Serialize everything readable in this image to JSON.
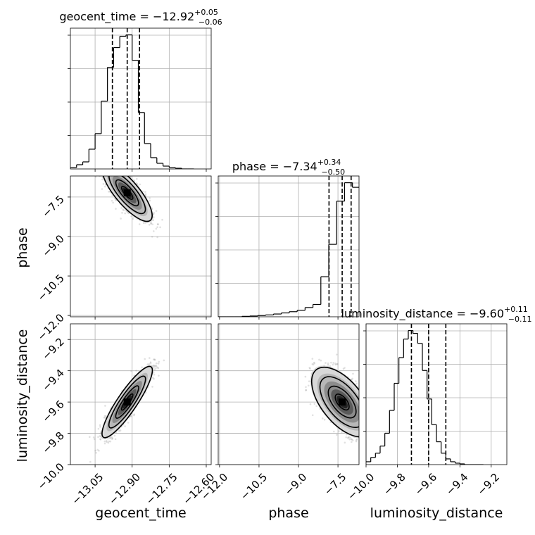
{
  "chart_data": {
    "type": "corner",
    "parameters": [
      "geocent_time",
      "phase",
      "luminosity_distance"
    ],
    "titles": [
      {
        "param": "geocent_time",
        "value": "−12.92",
        "upper": "+0.05",
        "lower": "−0.06"
      },
      {
        "param": "phase",
        "value": "−7.34",
        "upper": "+0.34",
        "lower": "−0.50"
      },
      {
        "param": "luminosity_distance",
        "value": "−9.60",
        "upper": "+0.11",
        "lower": "−0.11"
      }
    ],
    "axis_labels": [
      "geocent_time",
      "phase",
      "luminosity_distance"
    ],
    "ranges": {
      "geocent_time": [
        -13.15,
        -12.58
      ],
      "phase": [
        -12.05,
        -6.7
      ],
      "luminosity_distance": [
        -10.0,
        -9.1
      ]
    },
    "ticks": {
      "geocent_time": [
        -13.05,
        -12.9,
        -12.75,
        -12.6
      ],
      "phase": [
        -12.0,
        -10.5,
        -9.0,
        -7.5
      ],
      "luminosity_distance": [
        -10.0,
        -9.8,
        -9.6,
        -9.4,
        -9.2
      ]
    },
    "tick_labels": {
      "geocent_time": [
        "−13.05",
        "−12.90",
        "−12.75",
        "−12.60"
      ],
      "phase": [
        "−12.0",
        "−10.5",
        "−9.0",
        "−7.5"
      ],
      "luminosity_distance": [
        "−10.0",
        "−9.8",
        "−9.6",
        "−9.4",
        "−9.2"
      ]
    },
    "quantiles": {
      "geocent_time": [
        -12.98,
        -12.92,
        -12.87
      ],
      "phase": [
        -7.84,
        -7.34,
        -7.0
      ],
      "luminosity_distance": [
        -9.71,
        -9.6,
        -9.49
      ]
    },
    "medians": {
      "geocent_time": -12.92,
      "phase": -7.34,
      "luminosity_distance": -9.6
    },
    "histograms": {
      "geocent_time": {
        "edges": [
          -13.15,
          -13.125,
          -13.1,
          -13.075,
          -13.05,
          -13.025,
          -13.0,
          -12.975,
          -12.95,
          -12.925,
          -12.9,
          -12.875,
          -12.85,
          -12.825,
          -12.8,
          -12.775,
          -12.75,
          -12.725,
          -12.7,
          -12.675,
          -12.65
        ],
        "counts": [
          1,
          3,
          5,
          14,
          25,
          48,
          72,
          86,
          94,
          95,
          77,
          40,
          18,
          8,
          4,
          2,
          1,
          0.5,
          0,
          0
        ]
      },
      "phase": {
        "edges": [
          -12.05,
          -11.75,
          -11.45,
          -11.15,
          -10.85,
          -10.55,
          -10.25,
          -9.95,
          -9.65,
          -9.35,
          -9.05,
          -8.75,
          -8.45,
          -8.15,
          -7.85,
          -7.55,
          -7.25,
          -6.95,
          -6.7
        ],
        "counts": [
          0,
          0,
          0,
          0.3,
          0.5,
          0.8,
          1.2,
          1.8,
          2.5,
          3.3,
          4.2,
          6,
          8,
          26,
          47,
          75,
          87,
          84
        ]
      },
      "luminosity_distance": {
        "edges": [
          -10.0,
          -9.97,
          -9.94,
          -9.91,
          -9.88,
          -9.85,
          -9.82,
          -9.79,
          -9.76,
          -9.73,
          -9.7,
          -9.67,
          -9.64,
          -9.61,
          -9.58,
          -9.55,
          -9.52,
          -9.49,
          -9.46,
          -9.43,
          -9.4,
          -9.37,
          -9.34,
          -9.31,
          -9.28,
          -9.25
        ],
        "counts": [
          2,
          5,
          8,
          13,
          22,
          38,
          57,
          75,
          88,
          94,
          92,
          85,
          66,
          46,
          28,
          16,
          8,
          4,
          2,
          1,
          0.5,
          0,
          0,
          0,
          0
        ]
      }
    }
  }
}
